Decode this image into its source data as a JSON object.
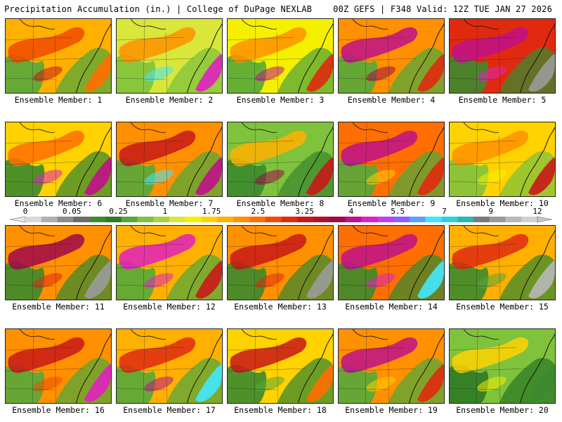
{
  "header": {
    "left": "Precipitation Accumulation (in.) | College of DuPage NEXLAB",
    "right": "00Z GEFS | F348 Valid: 12Z TUE JAN 27 2026"
  },
  "legend": {
    "tick_labels": [
      "0",
      "0.05",
      "0.25",
      "1",
      "1.75",
      "2.5",
      "3.25",
      "4",
      "5.5",
      "7",
      "9",
      "12"
    ],
    "colors": [
      "#d8d8d8",
      "#b0b0b0",
      "#8c8c8c",
      "#6e6e6e",
      "#3c8a2e",
      "#2f7a24",
      "#55a83a",
      "#7fc23c",
      "#a8d33e",
      "#d9e63a",
      "#f5f000",
      "#ffd200",
      "#ffb000",
      "#ff9000",
      "#ff6e00",
      "#f04a00",
      "#e02a10",
      "#c81818",
      "#b0102a",
      "#a0084a",
      "#c0108a",
      "#e020c0",
      "#c040f0",
      "#8a60ff",
      "#5aa0ff",
      "#40e8ff",
      "#30d0e0",
      "#28b8b0",
      "#7a7a7a",
      "#9a9a9a",
      "#b8b8b8",
      "#d0d0d0"
    ]
  },
  "panels": [
    {
      "label": "Ensemble Member: 1",
      "bg": "#ffb000",
      "blobs": [
        "#f04a00",
        "#55a83a",
        "#ff6e00",
        "#c81818"
      ]
    },
    {
      "label": "Ensemble Member: 2",
      "bg": "#d9e63a",
      "blobs": [
        "#ff9000",
        "#7fc23c",
        "#e020c0",
        "#40e8ff"
      ]
    },
    {
      "label": "Ensemble Member: 3",
      "bg": "#f5f000",
      "blobs": [
        "#ff9000",
        "#55a83a",
        "#e02a10",
        "#c0108a"
      ]
    },
    {
      "label": "Ensemble Member: 4",
      "bg": "#ff9000",
      "blobs": [
        "#c0108a",
        "#55a83a",
        "#e02a10",
        "#a0084a"
      ]
    },
    {
      "label": "Ensemble Member: 5",
      "bg": "#e02a10",
      "blobs": [
        "#c0108a",
        "#3c8a2e",
        "#9a9a9a",
        "#e020c0"
      ]
    },
    {
      "label": "Ensemble Member: 6",
      "bg": "#ffd200",
      "blobs": [
        "#ff6e00",
        "#3c8a2e",
        "#c0108a",
        "#e020c0"
      ]
    },
    {
      "label": "Ensemble Member: 7",
      "bg": "#ff9000",
      "blobs": [
        "#c81818",
        "#55a83a",
        "#c0108a",
        "#40e8ff"
      ]
    },
    {
      "label": "Ensemble Member: 8",
      "bg": "#7fc23c",
      "blobs": [
        "#ffb000",
        "#3c8a2e",
        "#c81818",
        "#a0084a"
      ]
    },
    {
      "label": "Ensemble Member: 9",
      "bg": "#ff6e00",
      "blobs": [
        "#c0108a",
        "#55a83a",
        "#e02a10",
        "#ffd200"
      ]
    },
    {
      "label": "Ensemble Member: 10",
      "bg": "#ffd200",
      "blobs": [
        "#ff9000",
        "#7fc23c",
        "#c81818",
        "#f5f000"
      ]
    },
    {
      "label": "Ensemble Member: 11",
      "bg": "#ff9000",
      "blobs": [
        "#a0084a",
        "#3c8a2e",
        "#9a9a9a",
        "#e02a10"
      ]
    },
    {
      "label": "Ensemble Member: 12",
      "bg": "#ffb000",
      "blobs": [
        "#e020c0",
        "#55a83a",
        "#c81818",
        "#e020c0"
      ]
    },
    {
      "label": "Ensemble Member: 13",
      "bg": "#ff9000",
      "blobs": [
        "#c81818",
        "#3c8a2e",
        "#9a9a9a",
        "#e02a10"
      ]
    },
    {
      "label": "Ensemble Member: 14",
      "bg": "#ff6e00",
      "blobs": [
        "#c0108a",
        "#3c8a2e",
        "#40e8ff",
        "#e020c0"
      ]
    },
    {
      "label": "Ensemble Member: 15",
      "bg": "#ffb000",
      "blobs": [
        "#e02a10",
        "#3c8a2e",
        "#b8b8b8",
        "#55a83a"
      ]
    },
    {
      "label": "Ensemble Member: 16",
      "bg": "#ff9000",
      "blobs": [
        "#c81818",
        "#55a83a",
        "#e020c0",
        "#f04a00"
      ]
    },
    {
      "label": "Ensemble Member: 17",
      "bg": "#ffb000",
      "blobs": [
        "#e02a10",
        "#55a83a",
        "#40e8ff",
        "#c0108a"
      ]
    },
    {
      "label": "Ensemble Member: 18",
      "bg": "#ffd200",
      "blobs": [
        "#c81818",
        "#3c8a2e",
        "#ff6e00",
        "#55a83a"
      ]
    },
    {
      "label": "Ensemble Member: 19",
      "bg": "#ff9000",
      "blobs": [
        "#c0108a",
        "#55a83a",
        "#e02a10",
        "#ffd200"
      ]
    },
    {
      "label": "Ensemble Member: 20",
      "bg": "#7fc23c",
      "blobs": [
        "#ffd200",
        "#2f7a24",
        "#3c8a2e",
        "#f5f000"
      ]
    }
  ]
}
